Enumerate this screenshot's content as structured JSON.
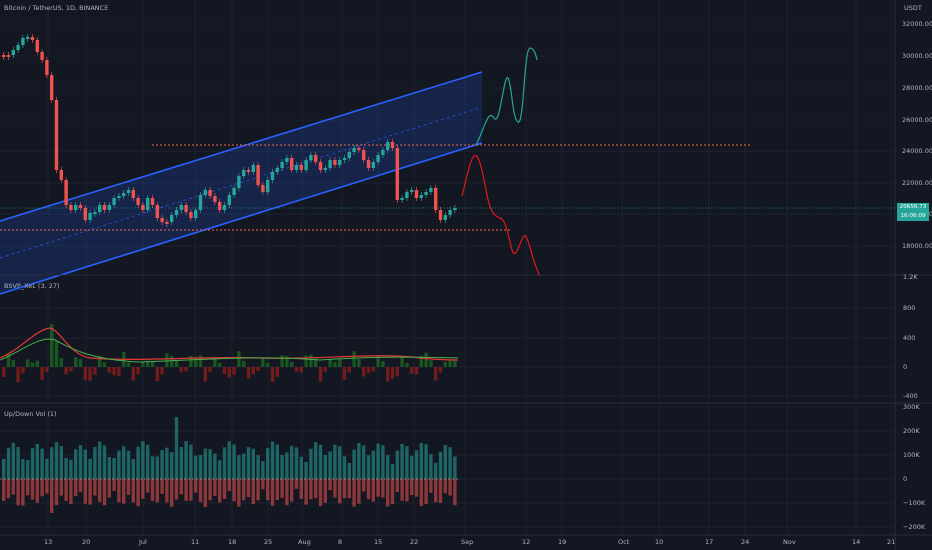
{
  "header": {
    "symbol_title": "Bitcoin / TetherUS, 1D, BINANCE",
    "currency": "USDT"
  },
  "price_axis": {
    "ticks": [
      "32000.00",
      "30000.00",
      "28000.00",
      "26000.00",
      "24000.00",
      "22000.00",
      "20000.00",
      "18000.00"
    ],
    "current_price": "20656.73",
    "countdown": "16:06:09"
  },
  "indicator_1": {
    "title": "BSVP_XeL (3, 27)",
    "ticks": [
      "1.2K",
      "800",
      "400",
      "0",
      "-400"
    ]
  },
  "indicator_2": {
    "title": "Up/Down Vol (1)",
    "ticks": [
      "300K",
      "200K",
      "100K",
      "0",
      "−100K",
      "−200K"
    ]
  },
  "time_axis": {
    "labels": [
      "13",
      "20",
      "Jul",
      "11",
      "18",
      "25",
      "Aug",
      "8",
      "15",
      "22",
      "Sep",
      "12",
      "19",
      "Oct",
      "10",
      "17",
      "24",
      "Nov",
      "14",
      "21"
    ]
  },
  "colors": {
    "background": "#131722",
    "up": "#26a69a",
    "down": "#ef5350",
    "channel": "#2962ff",
    "level_line": "#f0674b",
    "current_price_line": "#26a69a"
  },
  "annotations": {
    "channel": "ascending parallel channel",
    "levels": [
      "resistance near 24500",
      "support near 19500"
    ],
    "projections": [
      "bullish path (green)",
      "bearish path (red)"
    ]
  }
}
